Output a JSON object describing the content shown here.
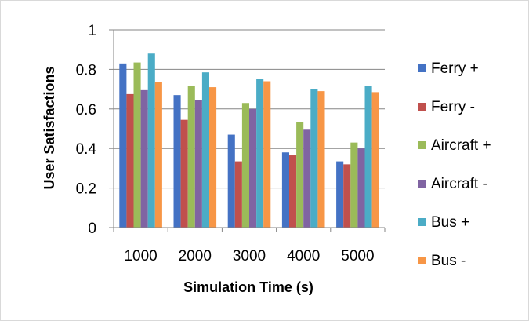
{
  "chart_data": {
    "type": "bar",
    "title": "",
    "xlabel": "Simulation Time (s)",
    "ylabel": "User Satisfactions",
    "categories": [
      "1000",
      "2000",
      "3000",
      "4000",
      "5000"
    ],
    "ylim": [
      0,
      1
    ],
    "yticks": [
      "0",
      "0.2",
      "0.4",
      "0.6",
      "0.8",
      "1"
    ],
    "grid": true,
    "legend_position": "right",
    "series": [
      {
        "name": "Ferry +",
        "color": "#4472C4",
        "values": [
          0.83,
          0.67,
          0.47,
          0.38,
          0.335
        ]
      },
      {
        "name": "Ferry -",
        "color": "#C0504D",
        "values": [
          0.675,
          0.545,
          0.335,
          0.365,
          0.32
        ]
      },
      {
        "name": "Aircraft +",
        "color": "#9BBB59",
        "values": [
          0.835,
          0.715,
          0.63,
          0.535,
          0.43
        ]
      },
      {
        "name": "Aircraft -",
        "color": "#8064A2",
        "values": [
          0.695,
          0.645,
          0.6,
          0.495,
          0.4
        ]
      },
      {
        "name": "Bus +",
        "color": "#4BACC6",
        "values": [
          0.88,
          0.785,
          0.75,
          0.7,
          0.715
        ]
      },
      {
        "name": "Bus -",
        "color": "#F79646",
        "values": [
          0.735,
          0.71,
          0.74,
          0.69,
          0.685
        ]
      }
    ]
  }
}
